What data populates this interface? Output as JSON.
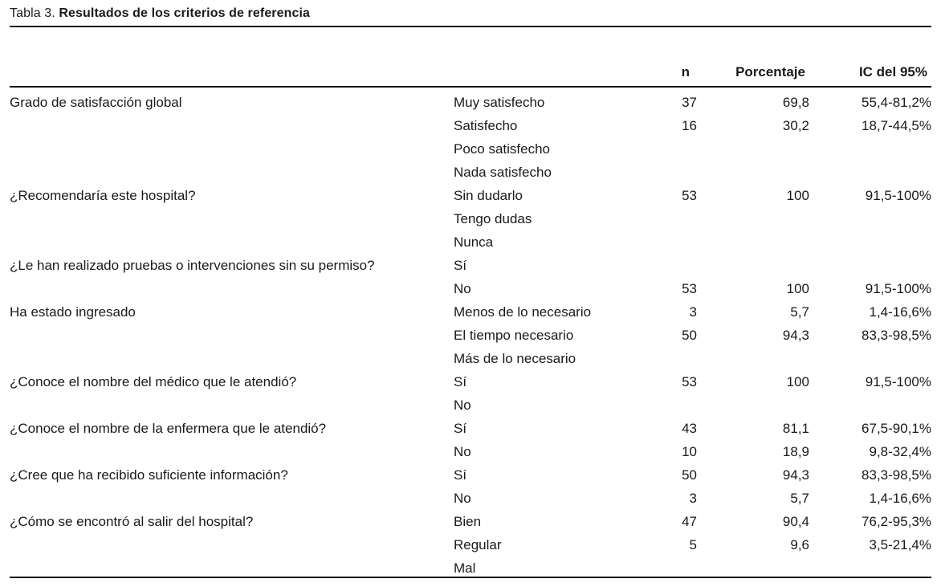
{
  "table": {
    "caption_label": "Tabla 3.",
    "caption_title": "Resultados de los criterios de referencia",
    "columns": {
      "question": "",
      "answer": "",
      "n": "n",
      "percent": "Porcentaje",
      "ci": "IC del 95%"
    },
    "rows": [
      {
        "question": "Grado de satisfacción global",
        "answer": "Muy satisfecho",
        "n": "37",
        "percent": "69,8",
        "ci": "55,4-81,2%"
      },
      {
        "question": "",
        "answer": "Satisfecho",
        "n": "16",
        "percent": "30,2",
        "ci": "18,7-44,5%"
      },
      {
        "question": "",
        "answer": "Poco satisfecho",
        "n": "",
        "percent": "",
        "ci": ""
      },
      {
        "question": "",
        "answer": "Nada satisfecho",
        "n": "",
        "percent": "",
        "ci": ""
      },
      {
        "question": "¿Recomendaría este hospital?",
        "answer": "Sin dudarlo",
        "n": "53",
        "percent": "100",
        "ci": "91,5-100%"
      },
      {
        "question": "",
        "answer": "Tengo dudas",
        "n": "",
        "percent": "",
        "ci": ""
      },
      {
        "question": "",
        "answer": "Nunca",
        "n": "",
        "percent": "",
        "ci": ""
      },
      {
        "question": "¿Le han realizado pruebas o intervenciones sin su permiso?",
        "answer": "Sí",
        "n": "",
        "percent": "",
        "ci": ""
      },
      {
        "question": "",
        "answer": "No",
        "n": "53",
        "percent": "100",
        "ci": "91,5-100%"
      },
      {
        "question": "Ha estado ingresado",
        "answer": "Menos de lo necesario",
        "n": "3",
        "percent": "5,7",
        "ci": "1,4-16,6%"
      },
      {
        "question": "",
        "answer": "El tiempo necesario",
        "n": "50",
        "percent": "94,3",
        "ci": "83,3-98,5%"
      },
      {
        "question": "",
        "answer": "Más de lo necesario",
        "n": "",
        "percent": "",
        "ci": ""
      },
      {
        "question": "¿Conoce el nombre del médico que le atendió?",
        "answer": "Sí",
        "n": "53",
        "percent": "100",
        "ci": "91,5-100%"
      },
      {
        "question": "",
        "answer": "No",
        "n": "",
        "percent": "",
        "ci": ""
      },
      {
        "question": "¿Conoce el nombre de la enfermera que le atendió?",
        "answer": "Sí",
        "n": "43",
        "percent": "81,1",
        "ci": "67,5-90,1%"
      },
      {
        "question": "",
        "answer": "No",
        "n": "10",
        "percent": "18,9",
        "ci": "9,8-32,4%"
      },
      {
        "question": "¿Cree que ha recibido suficiente información?",
        "answer": "Sí",
        "n": "50",
        "percent": "94,3",
        "ci": "83,3-98,5%"
      },
      {
        "question": "",
        "answer": "No",
        "n": "3",
        "percent": "5,7",
        "ci": "1,4-16,6%"
      },
      {
        "question": "¿Cómo se encontró al salir del hospital?",
        "answer": "Bien",
        "n": "47",
        "percent": "90,4",
        "ci": "76,2-95,3%"
      },
      {
        "question": "",
        "answer": "Regular",
        "n": "5",
        "percent": "9,6",
        "ci": "3,5-21,4%"
      },
      {
        "question": "",
        "answer": "Mal",
        "n": "",
        "percent": "",
        "ci": ""
      }
    ]
  },
  "colors": {
    "text": "#1a1a1a",
    "rule": "#111111",
    "background": "#ffffff"
  }
}
